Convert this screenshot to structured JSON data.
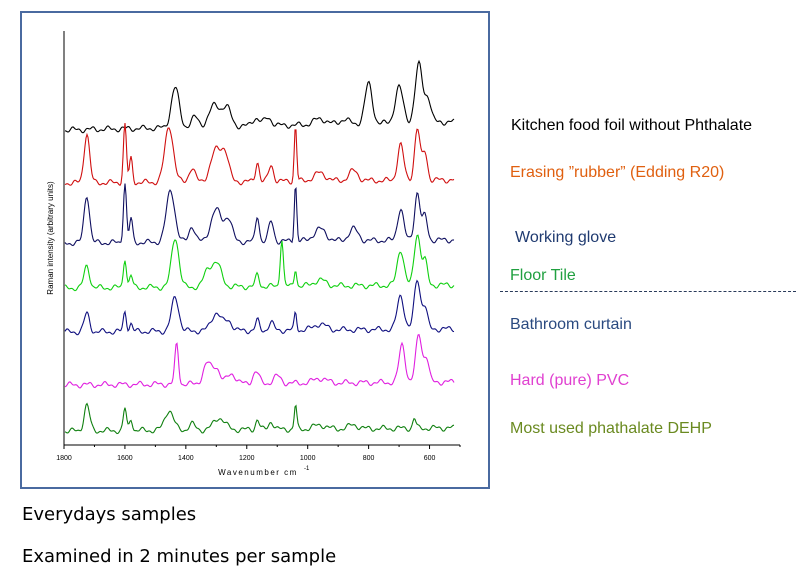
{
  "chart_data": {
    "type": "line",
    "xlabel": "Wavenumber cm",
    "xlabel_superscript": "-1",
    "ylabel": "Raman intensity (arbitrary units)",
    "xlim": [
      1800,
      500
    ],
    "x_reversed": true,
    "x_ticks": [
      1800,
      1600,
      1400,
      1200,
      1000,
      800,
      600
    ],
    "x_tick_labels": [
      "1800",
      "1600",
      "1400",
      "1200",
      "1000",
      "800",
      "600"
    ],
    "grid": false,
    "series": [
      {
        "name": "Kitchen food foil without Phthalate",
        "color": "#000000",
        "peaks": [
          [
            1435,
            1.0,
            13
          ],
          [
            1370,
            0.25,
            12
          ],
          [
            1305,
            0.55,
            18
          ],
          [
            1265,
            0.45,
            14
          ],
          [
            1170,
            0.2,
            12
          ],
          [
            1130,
            0.2,
            12
          ],
          [
            960,
            0.15,
            20
          ],
          [
            880,
            0.12,
            15
          ],
          [
            800,
            1.0,
            12
          ],
          [
            700,
            0.9,
            13
          ],
          [
            635,
            1.45,
            12
          ],
          [
            605,
            0.6,
            10
          ]
        ]
      },
      {
        "name": "Erasing ”rubber” (Edding R20)",
        "color": "#d01010",
        "peaks": [
          [
            1725,
            1.25,
            9
          ],
          [
            1600,
            1.45,
            5
          ],
          [
            1580,
            0.6,
            5
          ],
          [
            1455,
            1.4,
            14
          ],
          [
            1380,
            0.35,
            10
          ],
          [
            1300,
            0.8,
            18
          ],
          [
            1270,
            0.6,
            12
          ],
          [
            1165,
            0.5,
            6
          ],
          [
            1120,
            0.4,
            8
          ],
          [
            1040,
            1.4,
            4
          ],
          [
            960,
            0.2,
            20
          ],
          [
            850,
            0.25,
            15
          ],
          [
            695,
            0.9,
            10
          ],
          [
            640,
            1.3,
            9
          ],
          [
            615,
            0.7,
            8
          ]
        ]
      },
      {
        "name": "Working glove",
        "color": "#101060",
        "peaks": [
          [
            1725,
            1.2,
            9
          ],
          [
            1600,
            1.5,
            5
          ],
          [
            1580,
            0.6,
            5
          ],
          [
            1450,
            1.3,
            14
          ],
          [
            1380,
            0.4,
            10
          ],
          [
            1300,
            0.8,
            18
          ],
          [
            1260,
            0.55,
            12
          ],
          [
            1165,
            0.65,
            6
          ],
          [
            1120,
            0.5,
            8
          ],
          [
            1040,
            1.45,
            4
          ],
          [
            960,
            0.3,
            20
          ],
          [
            850,
            0.3,
            15
          ],
          [
            695,
            0.8,
            10
          ],
          [
            640,
            1.2,
            9
          ],
          [
            615,
            0.6,
            8
          ]
        ]
      },
      {
        "name": "Floor Tile",
        "color": "#10d010",
        "peaks": [
          [
            1725,
            0.55,
            9
          ],
          [
            1600,
            0.75,
            5
          ],
          [
            1580,
            0.3,
            5
          ],
          [
            1435,
            1.25,
            12
          ],
          [
            1330,
            0.35,
            12
          ],
          [
            1300,
            0.6,
            16
          ],
          [
            1165,
            0.3,
            6
          ],
          [
            1085,
            1.2,
            5
          ],
          [
            1040,
            0.45,
            4
          ],
          [
            960,
            0.15,
            20
          ],
          [
            695,
            0.9,
            11
          ],
          [
            640,
            1.3,
            10
          ],
          [
            615,
            0.6,
            8
          ]
        ]
      },
      {
        "name": "Bathroom curtain",
        "color": "#101080",
        "peaks": [
          [
            1725,
            0.45,
            9
          ],
          [
            1600,
            0.5,
            5
          ],
          [
            1580,
            0.2,
            5
          ],
          [
            1435,
            0.85,
            12
          ],
          [
            1300,
            0.45,
            16
          ],
          [
            1260,
            0.25,
            12
          ],
          [
            1165,
            0.25,
            6
          ],
          [
            1120,
            0.2,
            8
          ],
          [
            1040,
            0.45,
            4
          ],
          [
            960,
            0.15,
            20
          ],
          [
            695,
            0.85,
            11
          ],
          [
            640,
            1.25,
            10
          ],
          [
            615,
            0.55,
            8
          ]
        ]
      },
      {
        "name": "Hard (pure) PVC",
        "color": "#e020e0",
        "peaks": [
          [
            1430,
            1.0,
            6
          ],
          [
            1330,
            0.5,
            13
          ],
          [
            1300,
            0.4,
            12
          ],
          [
            1250,
            0.25,
            14
          ],
          [
            1170,
            0.3,
            10
          ],
          [
            1100,
            0.18,
            12
          ],
          [
            960,
            0.12,
            20
          ],
          [
            690,
            0.95,
            10
          ],
          [
            635,
            1.2,
            10
          ],
          [
            610,
            0.6,
            8
          ]
        ]
      },
      {
        "name": "Most used phathalate DEHP",
        "color": "#108010",
        "peaks": [
          [
            1725,
            0.65,
            9
          ],
          [
            1600,
            0.55,
            5
          ],
          [
            1580,
            0.3,
            5
          ],
          [
            1455,
            0.5,
            14
          ],
          [
            1380,
            0.15,
            10
          ],
          [
            1290,
            0.3,
            18
          ],
          [
            1165,
            0.25,
            6
          ],
          [
            1120,
            0.2,
            8
          ],
          [
            1040,
            0.6,
            4
          ],
          [
            960,
            0.1,
            20
          ],
          [
            850,
            0.1,
            15
          ],
          [
            650,
            0.25,
            5
          ]
        ]
      }
    ]
  },
  "legend": [
    {
      "text": "Kitchen food foil without Phthalate",
      "color": "#000000"
    },
    {
      "text": "Erasing ”rubber” (Edding R20)",
      "color": "#e06010"
    },
    {
      "text": "Working glove",
      "color": "#1f3a70"
    },
    {
      "text": "Floor Tile",
      "color": "#20a040"
    },
    {
      "text": "Bathroom curtain",
      "color": "#2a4a80"
    },
    {
      "text": "Hard (pure) PVC",
      "color": "#e040d0"
    },
    {
      "text": "Most used phathalate DEHP",
      "color": "#6a8a20"
    }
  ],
  "captions": {
    "line1": "Everydays samples",
    "line2": "Examined in 2 minutes per sample"
  }
}
